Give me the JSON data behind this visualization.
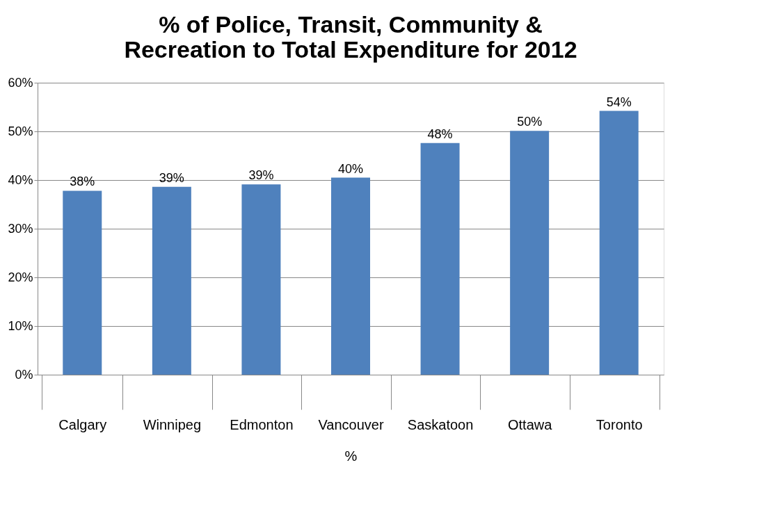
{
  "chart_data": {
    "type": "bar",
    "title": "% of Police, Transit, Community & Recreation to Total Expenditure for 2012",
    "xlabel": "%",
    "categories": [
      "Calgary",
      "Winnipeg",
      "Edmonton",
      "Vancouver",
      "Saskatoon",
      "Ottawa",
      "Toronto"
    ],
    "values": [
      37.8,
      38.6,
      39.1,
      40.5,
      47.6,
      50.1,
      54.2
    ],
    "value_labels": [
      "38%",
      "39%",
      "39%",
      "40%",
      "48%",
      "50%",
      "54%"
    ],
    "color": "#4f81bd",
    "ylim": [
      0,
      60
    ],
    "yticks": [
      {
        "value": 0,
        "label": "0%"
      },
      {
        "value": 10,
        "label": "10%"
      },
      {
        "value": 20,
        "label": "20%"
      },
      {
        "value": 30,
        "label": "30%"
      },
      {
        "value": 40,
        "label": "40%"
      },
      {
        "value": 50,
        "label": "50%"
      },
      {
        "value": 60,
        "label": "60%"
      }
    ],
    "grid": "y"
  }
}
